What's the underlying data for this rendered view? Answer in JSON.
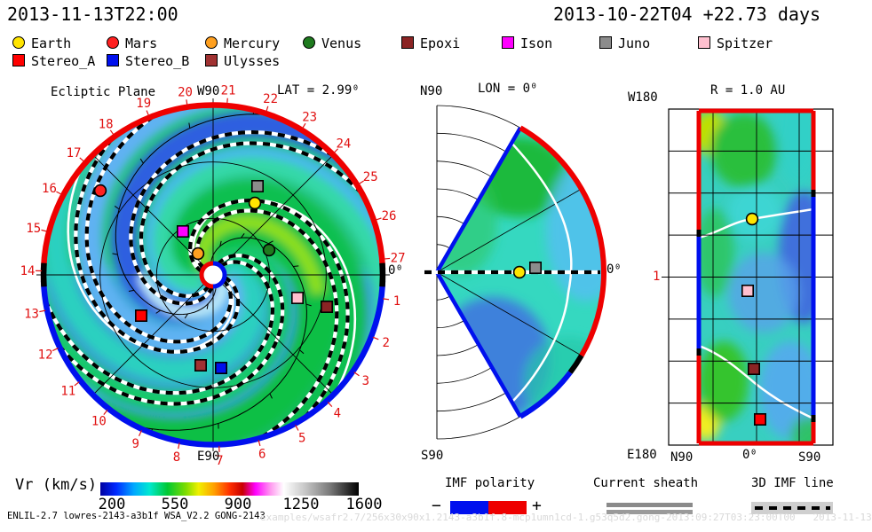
{
  "header": {
    "left_time": "2013-11-13T22:00",
    "right_time": "2013-10-22T04 +22.73 days"
  },
  "bodies": {
    "Earth": {
      "shape": "circle",
      "color": "#ffe400"
    },
    "Mars": {
      "shape": "circle",
      "color": "#ff2020"
    },
    "Mercury": {
      "shape": "circle",
      "color": "#ffa020"
    },
    "Venus": {
      "shape": "circle",
      "color": "#1e7a1e"
    },
    "Epoxi": {
      "shape": "square",
      "color": "#8b2424"
    },
    "Ison": {
      "shape": "square",
      "color": "#ff00ff"
    },
    "Juno": {
      "shape": "square",
      "color": "#8c8c8c"
    },
    "Spitzer": {
      "shape": "square",
      "color": "#ffc0cf"
    },
    "Stereo_A": {
      "shape": "square",
      "color": "#ff0000"
    },
    "Stereo_B": {
      "shape": "square",
      "color": "#0010ee"
    },
    "Ulysses": {
      "shape": "square",
      "color": "#a03232"
    }
  },
  "legend": {
    "row1": [
      "Earth",
      "Mars",
      "Mercury",
      "Venus",
      "Epoxi",
      "Ison",
      "Juno",
      "Spitzer"
    ],
    "row2": [
      "Stereo_A",
      "Stereo_B",
      "Ulysses"
    ]
  },
  "chart_data": {
    "type": "heatmap",
    "quantity": "radial solar wind speed Vr from ENLIL heliospheric simulation",
    "colorbar": {
      "label": "Vr (km/s)",
      "ticks": [
        "200",
        "550",
        "900",
        "1250",
        "1600"
      ],
      "range": [
        200,
        1600
      ]
    },
    "polarity_colors": {
      "negative": "#0010ee",
      "positive": "#ee0000"
    },
    "panels": {
      "ecliptic": {
        "title": "Ecliptic Plane",
        "lat_label": "LAT = 2.99⁰",
        "west": "W90",
        "east": "E90",
        "zero": "0⁰",
        "day_ticks": [
          1,
          2,
          3,
          4,
          5,
          6,
          7,
          8,
          9,
          10,
          11,
          12,
          13,
          14,
          15,
          16,
          17,
          18,
          19,
          20,
          21,
          22,
          23,
          24,
          25,
          26,
          27
        ],
        "markers": [
          {
            "body": "Mars",
            "x": 113,
            "y": 215
          },
          {
            "body": "Juno",
            "x": 290,
            "y": 210
          },
          {
            "body": "Earth",
            "x": 287,
            "y": 229
          },
          {
            "body": "Ison",
            "x": 206,
            "y": 261
          },
          {
            "body": "Mercury",
            "x": 223,
            "y": 286
          },
          {
            "body": "Venus",
            "x": 303,
            "y": 282
          },
          {
            "body": "Spitzer",
            "x": 335,
            "y": 336
          },
          {
            "body": "Epoxi",
            "x": 368,
            "y": 346
          },
          {
            "body": "Stereo_A",
            "x": 159,
            "y": 356
          },
          {
            "body": "Ulysses",
            "x": 226,
            "y": 412
          },
          {
            "body": "Stereo_B",
            "x": 249,
            "y": 415
          }
        ]
      },
      "meridional": {
        "title": "LON = 0⁰",
        "north": "N90",
        "south": "S90",
        "zero": "0⁰",
        "markers": [
          {
            "body": "Earth",
            "x": 585,
            "y": 307
          },
          {
            "body": "Juno",
            "x": 603,
            "y": 302
          }
        ]
      },
      "radial": {
        "title": "R = 1.0 AU",
        "west": "W180",
        "east": "E180",
        "xticks": [
          "N90",
          "0⁰",
          "S90"
        ],
        "r_tick": "1",
        "markers": [
          {
            "body": "Earth",
            "x": 847,
            "y": 247
          },
          {
            "body": "Spitzer",
            "x": 842,
            "y": 328
          },
          {
            "body": "Epoxi",
            "x": 849,
            "y": 416
          },
          {
            "body": "Stereo_A",
            "x": 856,
            "y": 473
          }
        ]
      }
    }
  },
  "sub_legends": {
    "imf": {
      "title": "IMF polarity",
      "minus": "−",
      "plus": "+"
    },
    "sheath": {
      "title": "Current sheath"
    },
    "imf_line": {
      "title": "3D IMF line"
    }
  },
  "footer": {
    "run_info": "ENLIL-2.7 lowres-2143-a3b1f WSA_V2.2 GONG-2143",
    "watermark": "examples/wsafr2.7/256x30x90x1.2143-a3b1f.8-mcp1umn1cd-1.g53q5d2.gong-2013:09:27T03:23:00T00   2013-11-13"
  }
}
